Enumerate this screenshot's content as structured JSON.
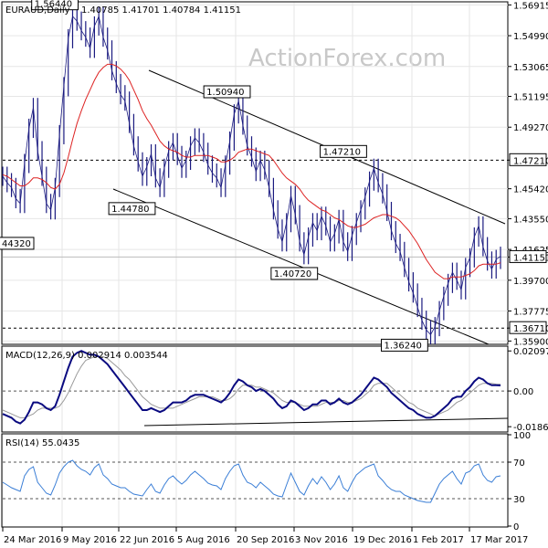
{
  "header": {
    "symbol": "EURAUD,Daily",
    "ohlc": "1.40785 1.41701 1.40784 1.41151"
  },
  "watermark": "ActionForex.com",
  "colors": {
    "price": "#1a1a80",
    "ma": "#dd2222",
    "macd": "#0a0a80",
    "signal": "#999999",
    "rsi": "#3a7ed6",
    "grid": "#e6e6e6"
  },
  "chart_data": [
    {
      "type": "line",
      "title": "EURAUD,Daily",
      "x_labels": [
        "24 Mar 2016",
        "9 May 2016",
        "22 Jun 2016",
        "5 Aug 2016",
        "20 Sep 2016",
        "3 Nov 2016",
        "19 Dec 2016",
        "1 Feb 2017",
        "17 Mar 2017"
      ],
      "yticks": [
        "1.56915",
        "1.54990",
        "1.53065",
        "1.51195",
        "1.49270",
        "1.47210",
        "1.45420",
        "1.43550",
        "1.41625",
        "1.41151",
        "1.39700",
        "1.37775",
        "1.36710",
        "1.35900"
      ],
      "ylim": [
        1.3575,
        1.5705
      ],
      "series": [
        {
          "values": [
            1.462,
            1.458,
            1.455,
            1.448,
            1.445,
            1.47,
            1.492,
            1.505,
            1.478,
            1.462,
            1.445,
            1.441,
            1.455,
            1.488,
            1.518,
            1.548,
            1.562,
            1.559,
            1.553,
            1.549,
            1.542,
            1.556,
            1.562,
            1.549,
            1.541,
            1.528,
            1.52,
            1.513,
            1.509,
            1.495,
            1.481,
            1.471,
            1.462,
            1.468,
            1.476,
            1.461,
            1.455,
            1.467,
            1.478,
            1.483,
            1.475,
            1.467,
            1.472,
            1.481,
            1.486,
            1.483,
            1.477,
            1.469,
            1.464,
            1.461,
            1.455,
            1.469,
            1.484,
            1.501,
            1.509,
            1.494,
            1.481,
            1.474,
            1.465,
            1.472,
            1.466,
            1.455,
            1.441,
            1.429,
            1.421,
            1.433,
            1.45,
            1.438,
            1.421,
            1.413,
            1.424,
            1.433,
            1.428,
            1.437,
            1.431,
            1.421,
            1.426,
            1.435,
            1.421,
            1.415,
            1.425,
            1.433,
            1.441,
            1.449,
            1.459,
            1.467,
            1.458,
            1.451,
            1.44,
            1.428,
            1.42,
            1.415,
            1.405,
            1.396,
            1.389,
            1.38,
            1.372,
            1.366,
            1.363,
            1.368,
            1.378,
            1.387,
            1.395,
            1.402,
            1.397,
            1.391,
            1.405,
            1.411,
            1.424,
            1.431,
            1.418,
            1.409,
            1.404,
            1.41,
            1.412
          ]
        },
        {
          "values": [
            1.463,
            1.462,
            1.46,
            1.458,
            1.456,
            1.456,
            1.458,
            1.461,
            1.461,
            1.46,
            1.458,
            1.455,
            1.454,
            1.457,
            1.464,
            1.474,
            1.485,
            1.495,
            1.503,
            1.51,
            1.516,
            1.522,
            1.527,
            1.53,
            1.532,
            1.532,
            1.531,
            1.529,
            1.526,
            1.522,
            1.516,
            1.51,
            1.503,
            1.498,
            1.494,
            1.489,
            1.484,
            1.481,
            1.479,
            1.478,
            1.477,
            1.475,
            1.474,
            1.474,
            1.475,
            1.475,
            1.475,
            1.475,
            1.474,
            1.473,
            1.471,
            1.471,
            1.472,
            1.474,
            1.477,
            1.478,
            1.479,
            1.479,
            1.478,
            1.477,
            1.476,
            1.475,
            1.472,
            1.468,
            1.464,
            1.461,
            1.459,
            1.457,
            1.454,
            1.45,
            1.447,
            1.445,
            1.443,
            1.441,
            1.44,
            1.438,
            1.436,
            1.435,
            1.433,
            1.431,
            1.43,
            1.43,
            1.431,
            1.432,
            1.434,
            1.436,
            1.437,
            1.438,
            1.438,
            1.437,
            1.436,
            1.434,
            1.431,
            1.428,
            1.424,
            1.42,
            1.415,
            1.41,
            1.406,
            1.402,
            1.4,
            1.398,
            1.398,
            1.399,
            1.399,
            1.399,
            1.4,
            1.401,
            1.403,
            1.406,
            1.407,
            1.407,
            1.407,
            1.407,
            1.408
          ]
        }
      ],
      "annotations": [
        "1.56440",
        "1.50940",
        "1.44780",
        "44320",
        "1.40720",
        "1.47210",
        "1.36240"
      ],
      "levels": [
        "1.47210",
        "1.36710",
        "1.41151"
      ]
    },
    {
      "type": "line",
      "title": "MACD(12,26,9) 0.002914 0.003544",
      "yticks": [
        "0.020975",
        "0.00",
        "-0.018694"
      ],
      "ylim": [
        -0.021,
        0.023
      ],
      "series": [
        {
          "values": [
            -0.012,
            -0.013,
            -0.014,
            -0.016,
            -0.017,
            -0.015,
            -0.011,
            -0.006,
            -0.006,
            -0.007,
            -0.009,
            -0.01,
            -0.008,
            -0.002,
            0.005,
            0.012,
            0.018,
            0.02,
            0.021,
            0.02,
            0.019,
            0.019,
            0.018,
            0.016,
            0.014,
            0.011,
            0.008,
            0.005,
            0.002,
            -0.001,
            -0.004,
            -0.007,
            -0.01,
            -0.01,
            -0.009,
            -0.01,
            -0.011,
            -0.01,
            -0.008,
            -0.006,
            -0.006,
            -0.006,
            -0.005,
            -0.003,
            -0.002,
            -0.002,
            -0.002,
            -0.003,
            -0.004,
            -0.005,
            -0.006,
            -0.004,
            -0.001,
            0.003,
            0.006,
            0.005,
            0.003,
            0.002,
            0.0,
            0.001,
            0.0,
            -0.002,
            -0.004,
            -0.007,
            -0.009,
            -0.008,
            -0.005,
            -0.006,
            -0.008,
            -0.01,
            -0.009,
            -0.007,
            -0.007,
            -0.005,
            -0.005,
            -0.007,
            -0.006,
            -0.004,
            -0.006,
            -0.007,
            -0.006,
            -0.004,
            -0.002,
            0.001,
            0.004,
            0.007,
            0.006,
            0.004,
            0.002,
            -0.001,
            -0.003,
            -0.005,
            -0.007,
            -0.009,
            -0.01,
            -0.012,
            -0.013,
            -0.014,
            -0.014,
            -0.013,
            -0.011,
            -0.009,
            -0.007,
            -0.004,
            -0.003,
            -0.003,
            0.0,
            0.002,
            0.005,
            0.007,
            0.006,
            0.004,
            0.003,
            0.003,
            0.0029
          ]
        },
        {
          "values": [
            -0.01,
            -0.011,
            -0.012,
            -0.013,
            -0.014,
            -0.014,
            -0.013,
            -0.012,
            -0.01,
            -0.009,
            -0.009,
            -0.009,
            -0.009,
            -0.008,
            -0.005,
            -0.001,
            0.004,
            0.009,
            0.013,
            0.016,
            0.017,
            0.018,
            0.018,
            0.018,
            0.017,
            0.015,
            0.013,
            0.011,
            0.008,
            0.006,
            0.003,
            0.0,
            -0.003,
            -0.005,
            -0.007,
            -0.008,
            -0.009,
            -0.009,
            -0.009,
            -0.009,
            -0.008,
            -0.007,
            -0.006,
            -0.005,
            -0.004,
            -0.003,
            -0.003,
            -0.003,
            -0.003,
            -0.004,
            -0.005,
            -0.005,
            -0.004,
            -0.002,
            0.001,
            0.003,
            0.003,
            0.003,
            0.002,
            0.002,
            0.001,
            0.0,
            -0.001,
            -0.003,
            -0.005,
            -0.006,
            -0.006,
            -0.006,
            -0.007,
            -0.008,
            -0.008,
            -0.008,
            -0.008,
            -0.007,
            -0.006,
            -0.006,
            -0.006,
            -0.005,
            -0.005,
            -0.006,
            -0.006,
            -0.005,
            -0.004,
            -0.002,
            0.0,
            0.003,
            0.004,
            0.004,
            0.004,
            0.002,
            0.0,
            -0.002,
            -0.004,
            -0.006,
            -0.007,
            -0.009,
            -0.01,
            -0.011,
            -0.012,
            -0.013,
            -0.012,
            -0.011,
            -0.01,
            -0.008,
            -0.006,
            -0.005,
            -0.003,
            -0.001,
            0.001,
            0.003,
            0.004,
            0.004,
            0.004,
            0.0036,
            0.0035
          ]
        }
      ]
    },
    {
      "type": "line",
      "title": "RSI(14) 55.0435",
      "yticks": [
        "100",
        "70",
        "30",
        "0"
      ],
      "ylim": [
        0,
        100
      ],
      "series": [
        {
          "values": [
            48,
            45,
            42,
            40,
            38,
            55,
            62,
            65,
            48,
            42,
            36,
            34,
            45,
            58,
            65,
            70,
            72,
            66,
            62,
            60,
            56,
            64,
            68,
            56,
            52,
            46,
            44,
            42,
            42,
            38,
            35,
            34,
            33,
            40,
            46,
            38,
            36,
            45,
            52,
            55,
            50,
            46,
            50,
            56,
            60,
            56,
            52,
            47,
            45,
            44,
            40,
            52,
            60,
            66,
            68,
            56,
            48,
            46,
            42,
            48,
            44,
            40,
            35,
            33,
            32,
            45,
            58,
            48,
            38,
            34,
            44,
            52,
            46,
            54,
            48,
            40,
            46,
            55,
            42,
            38,
            48,
            56,
            60,
            64,
            66,
            68,
            55,
            50,
            44,
            40,
            38,
            38,
            34,
            32,
            30,
            28,
            27,
            26,
            26,
            36,
            46,
            52,
            56,
            60,
            52,
            46,
            58,
            60,
            66,
            68,
            56,
            50,
            48,
            54,
            55
          ]
        }
      ]
    }
  ]
}
